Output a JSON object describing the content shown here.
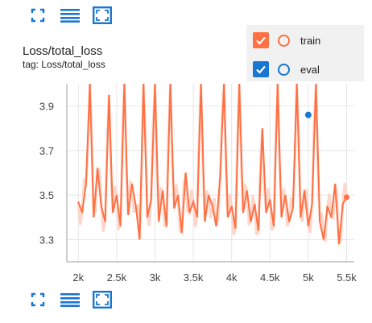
{
  "card": {
    "title": "Loss/total_loss",
    "tag": "tag: Loss/total_loss"
  },
  "toolbar": {
    "icons": [
      "fullscreen-icon",
      "data-table-icon",
      "fit-domain-icon"
    ],
    "accent": "#1976d2"
  },
  "legend": [
    {
      "name": "train",
      "color": "#ff7043",
      "checked": true
    },
    {
      "name": "eval",
      "color": "#1976d2",
      "checked": true
    }
  ],
  "chart_data": {
    "type": "line",
    "title": "",
    "xlabel": "",
    "ylabel": "",
    "xlim": [
      1850,
      5600
    ],
    "ylim": [
      3.2,
      4.0
    ],
    "x_ticks": [
      2000,
      2500,
      3000,
      3500,
      4000,
      4500,
      5000,
      5500
    ],
    "x_tick_labels": [
      "2k",
      "2.5k",
      "3k",
      "3.5k",
      "4k",
      "4.5k",
      "5k",
      "5.5k"
    ],
    "y_ticks": [
      3.3,
      3.5,
      3.7,
      3.9
    ],
    "y_tick_labels": [
      "3.3",
      "3.5",
      "3.7",
      "3.9"
    ],
    "grid": true,
    "legend_position": "top-right",
    "series": [
      {
        "name": "train",
        "color": "#ff7043",
        "raw_color": "#ffccbc",
        "x": [
          2000,
          2050,
          2100,
          2150,
          2200,
          2250,
          2300,
          2350,
          2400,
          2450,
          2500,
          2550,
          2600,
          2650,
          2700,
          2750,
          2800,
          2850,
          2900,
          2950,
          3000,
          3050,
          3100,
          3150,
          3200,
          3250,
          3300,
          3350,
          3400,
          3450,
          3500,
          3550,
          3600,
          3650,
          3700,
          3750,
          3800,
          3850,
          3900,
          3950,
          4000,
          4050,
          4100,
          4150,
          4200,
          4250,
          4300,
          4350,
          4400,
          4450,
          4500,
          4550,
          4600,
          4650,
          4700,
          4750,
          4800,
          4850,
          4900,
          4950,
          5000,
          5050,
          5100,
          5150,
          5200,
          5250,
          5300,
          5350,
          5400,
          5450,
          5500
        ],
        "y": [
          3.47,
          3.42,
          3.55,
          4.0,
          3.4,
          3.62,
          3.45,
          3.38,
          3.95,
          3.42,
          3.5,
          3.36,
          4.0,
          3.41,
          3.55,
          3.45,
          3.3,
          4.0,
          3.4,
          3.48,
          4.0,
          3.38,
          3.52,
          3.36,
          4.0,
          3.44,
          3.5,
          3.33,
          3.6,
          3.42,
          3.47,
          3.4,
          4.0,
          3.38,
          3.5,
          3.45,
          3.36,
          3.58,
          4.0,
          3.4,
          3.45,
          3.35,
          4.0,
          3.42,
          3.52,
          3.38,
          3.46,
          3.34,
          3.8,
          3.42,
          3.48,
          3.36,
          4.0,
          3.4,
          3.5,
          3.38,
          3.44,
          4.0,
          3.4,
          3.52,
          3.36,
          3.46,
          4.0,
          3.38,
          3.3,
          3.45,
          3.4,
          3.55,
          3.28,
          3.46,
          3.49
        ]
      },
      {
        "name": "eval",
        "color": "#1976d2",
        "x": [
          5000
        ],
        "y": [
          3.86
        ]
      }
    ]
  }
}
